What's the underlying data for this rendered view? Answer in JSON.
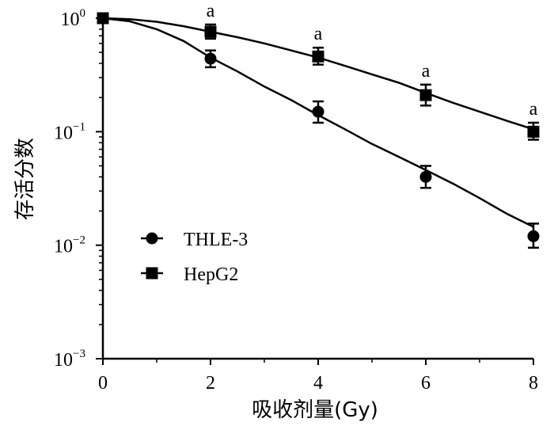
{
  "chart_data": {
    "type": "line",
    "xlabel": "吸收剂量(Gy)",
    "ylabel": "存活分数",
    "xlim": [
      0,
      8
    ],
    "ylim": [
      0.001,
      1
    ],
    "y_scale": "log",
    "x_ticks": [
      "0",
      "2",
      "4",
      "6",
      "8"
    ],
    "y_ticks": [
      {
        "value": 1,
        "base": "10",
        "exp": "0"
      },
      {
        "value": 0.1,
        "base": "10",
        "exp": "−1"
      },
      {
        "value": 0.01,
        "base": "10",
        "exp": "−2"
      },
      {
        "value": 0.001,
        "base": "10",
        "exp": "−3"
      }
    ],
    "legend_position": "bottom-left",
    "grid": false,
    "series": [
      {
        "name": "THLE-3",
        "marker": "circle",
        "x": [
          0,
          2,
          4,
          6,
          8
        ],
        "y": [
          1.0,
          0.44,
          0.15,
          0.04,
          0.012
        ],
        "err_low": [
          0.95,
          0.37,
          0.12,
          0.032,
          0.0095
        ],
        "err_high": [
          1.05,
          0.52,
          0.185,
          0.05,
          0.0155
        ],
        "fit": [
          [
            0,
            1.0
          ],
          [
            0.5,
            0.94
          ],
          [
            1,
            0.8
          ],
          [
            1.5,
            0.63
          ],
          [
            2,
            0.45
          ],
          [
            2.5,
            0.34
          ],
          [
            3,
            0.25
          ],
          [
            3.5,
            0.19
          ],
          [
            4,
            0.14
          ],
          [
            4.5,
            0.105
          ],
          [
            5,
            0.078
          ],
          [
            5.5,
            0.06
          ],
          [
            6,
            0.046
          ],
          [
            6.5,
            0.035
          ],
          [
            7,
            0.026
          ],
          [
            7.5,
            0.019
          ],
          [
            8,
            0.0145
          ]
        ]
      },
      {
        "name": "HepG2",
        "marker": "square",
        "x": [
          0,
          2,
          4,
          6,
          8
        ],
        "y": [
          1.0,
          0.76,
          0.46,
          0.21,
          0.1
        ],
        "err_low": [
          0.95,
          0.66,
          0.39,
          0.17,
          0.085
        ],
        "err_high": [
          1.05,
          0.88,
          0.55,
          0.26,
          0.12
        ],
        "fit": [
          [
            0,
            1.0
          ],
          [
            0.5,
            0.98
          ],
          [
            1,
            0.93
          ],
          [
            1.5,
            0.85
          ],
          [
            2,
            0.76
          ],
          [
            2.5,
            0.68
          ],
          [
            3,
            0.6
          ],
          [
            3.5,
            0.52
          ],
          [
            4,
            0.45
          ],
          [
            4.5,
            0.38
          ],
          [
            5,
            0.32
          ],
          [
            5.5,
            0.27
          ],
          [
            6,
            0.22
          ],
          [
            6.5,
            0.18
          ],
          [
            7,
            0.15
          ],
          [
            7.5,
            0.125
          ],
          [
            8,
            0.105
          ]
        ]
      }
    ],
    "annotations": [
      {
        "text": "a",
        "x": 2
      },
      {
        "text": "a",
        "x": 4
      },
      {
        "text": "a",
        "x": 6
      },
      {
        "text": "a",
        "x": 8
      }
    ]
  }
}
